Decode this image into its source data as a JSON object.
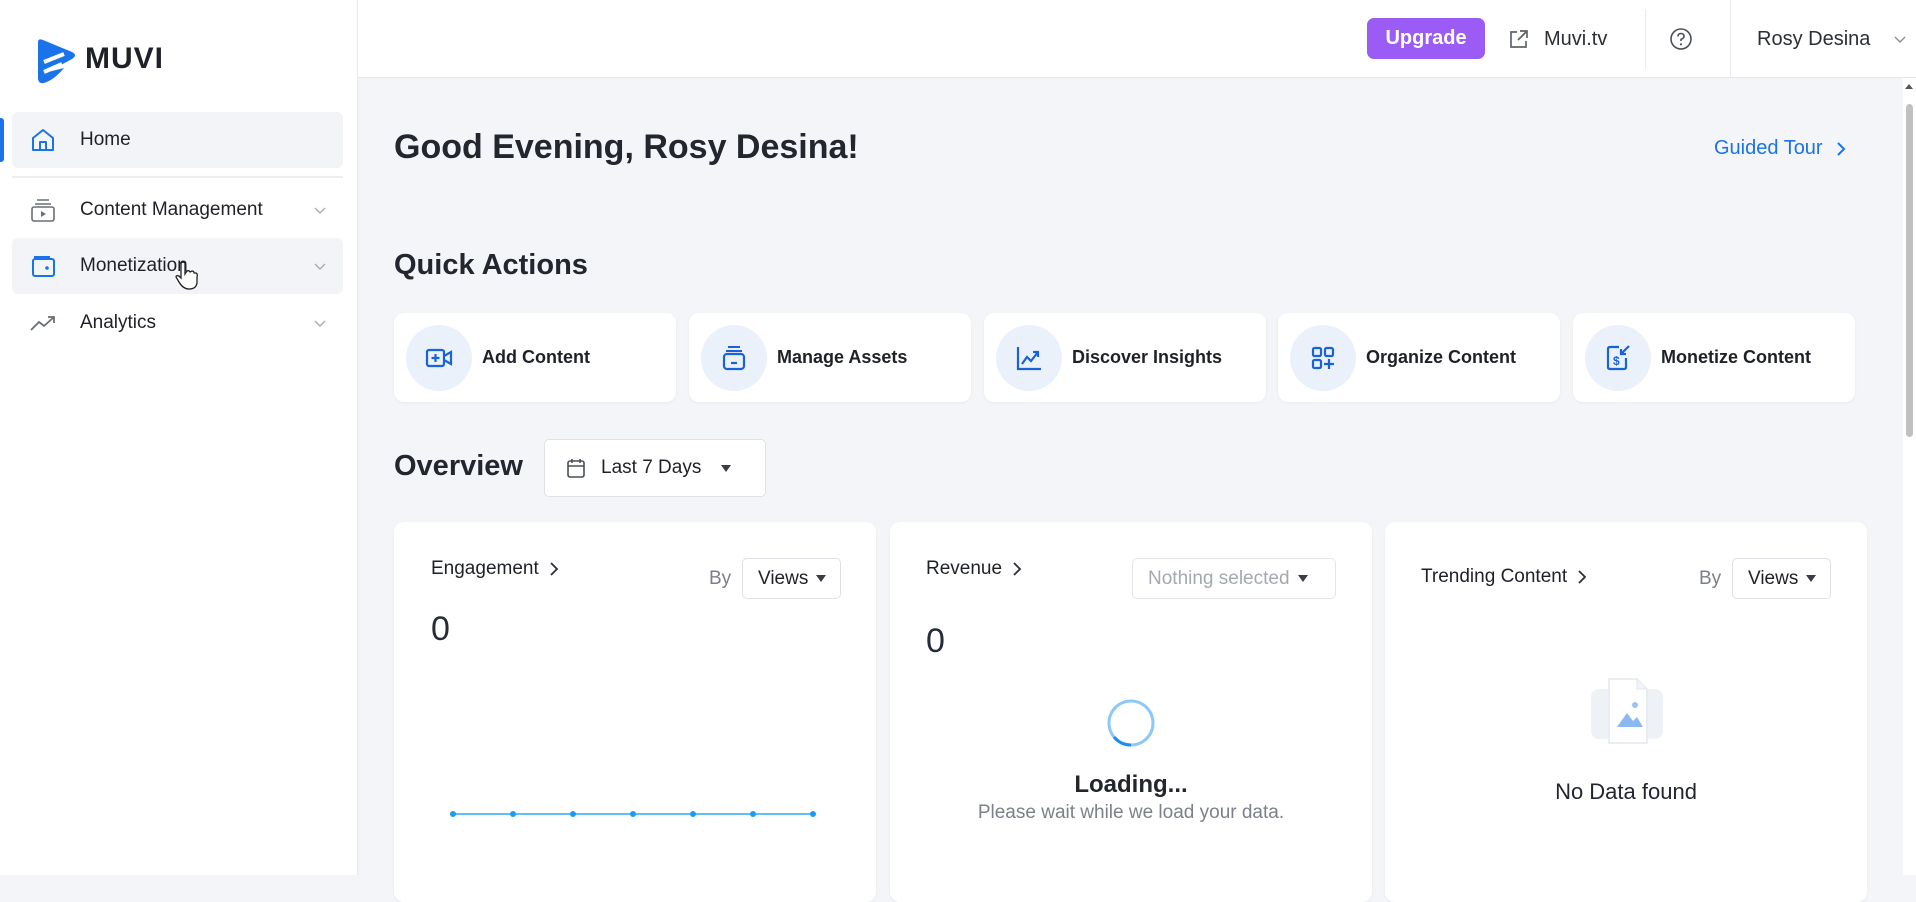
{
  "brand": {
    "name": "MUVI",
    "color": "#1a73e8"
  },
  "sidebar": {
    "items": [
      {
        "label": "Home",
        "icon": "home-icon",
        "active": true
      },
      {
        "label": "Content Management",
        "icon": "content-stack-icon"
      },
      {
        "label": "Monetization",
        "icon": "wallet-icon",
        "hovered": true
      },
      {
        "label": "Analytics",
        "icon": "trend-icon"
      }
    ]
  },
  "header": {
    "upgrade": "Upgrade",
    "site_link": "Muvi.tv",
    "user": "Rosy Desina",
    "upgrade_color": "#9b5cf6"
  },
  "main": {
    "greeting": "Good Evening, Rosy Desina!",
    "guided_tour": "Guided Tour",
    "quick_actions_title": "Quick Actions",
    "quick_actions": [
      {
        "label": "Add Content",
        "icon": "add-video-icon"
      },
      {
        "label": "Manage Assets",
        "icon": "assets-icon"
      },
      {
        "label": "Discover Insights",
        "icon": "chart-icon"
      },
      {
        "label": "Organize Content",
        "icon": "grid-plus-icon"
      },
      {
        "label": "Monetize Content",
        "icon": "dollar-icon"
      }
    ],
    "overview_title": "Overview",
    "date_range": "Last 7 Days",
    "cards": {
      "engagement": {
        "title": "Engagement",
        "by": "By",
        "select": "Views",
        "value": "0",
        "points": [
          0,
          0,
          0,
          0,
          0,
          0,
          0
        ]
      },
      "revenue": {
        "title": "Revenue",
        "select_placeholder": "Nothing selected",
        "value": "0",
        "loading": "Loading...",
        "loading_sub": "Please wait while we load your data."
      },
      "trending": {
        "title": "Trending Content",
        "by": "By",
        "select": "Views",
        "empty": "No Data found"
      }
    }
  }
}
